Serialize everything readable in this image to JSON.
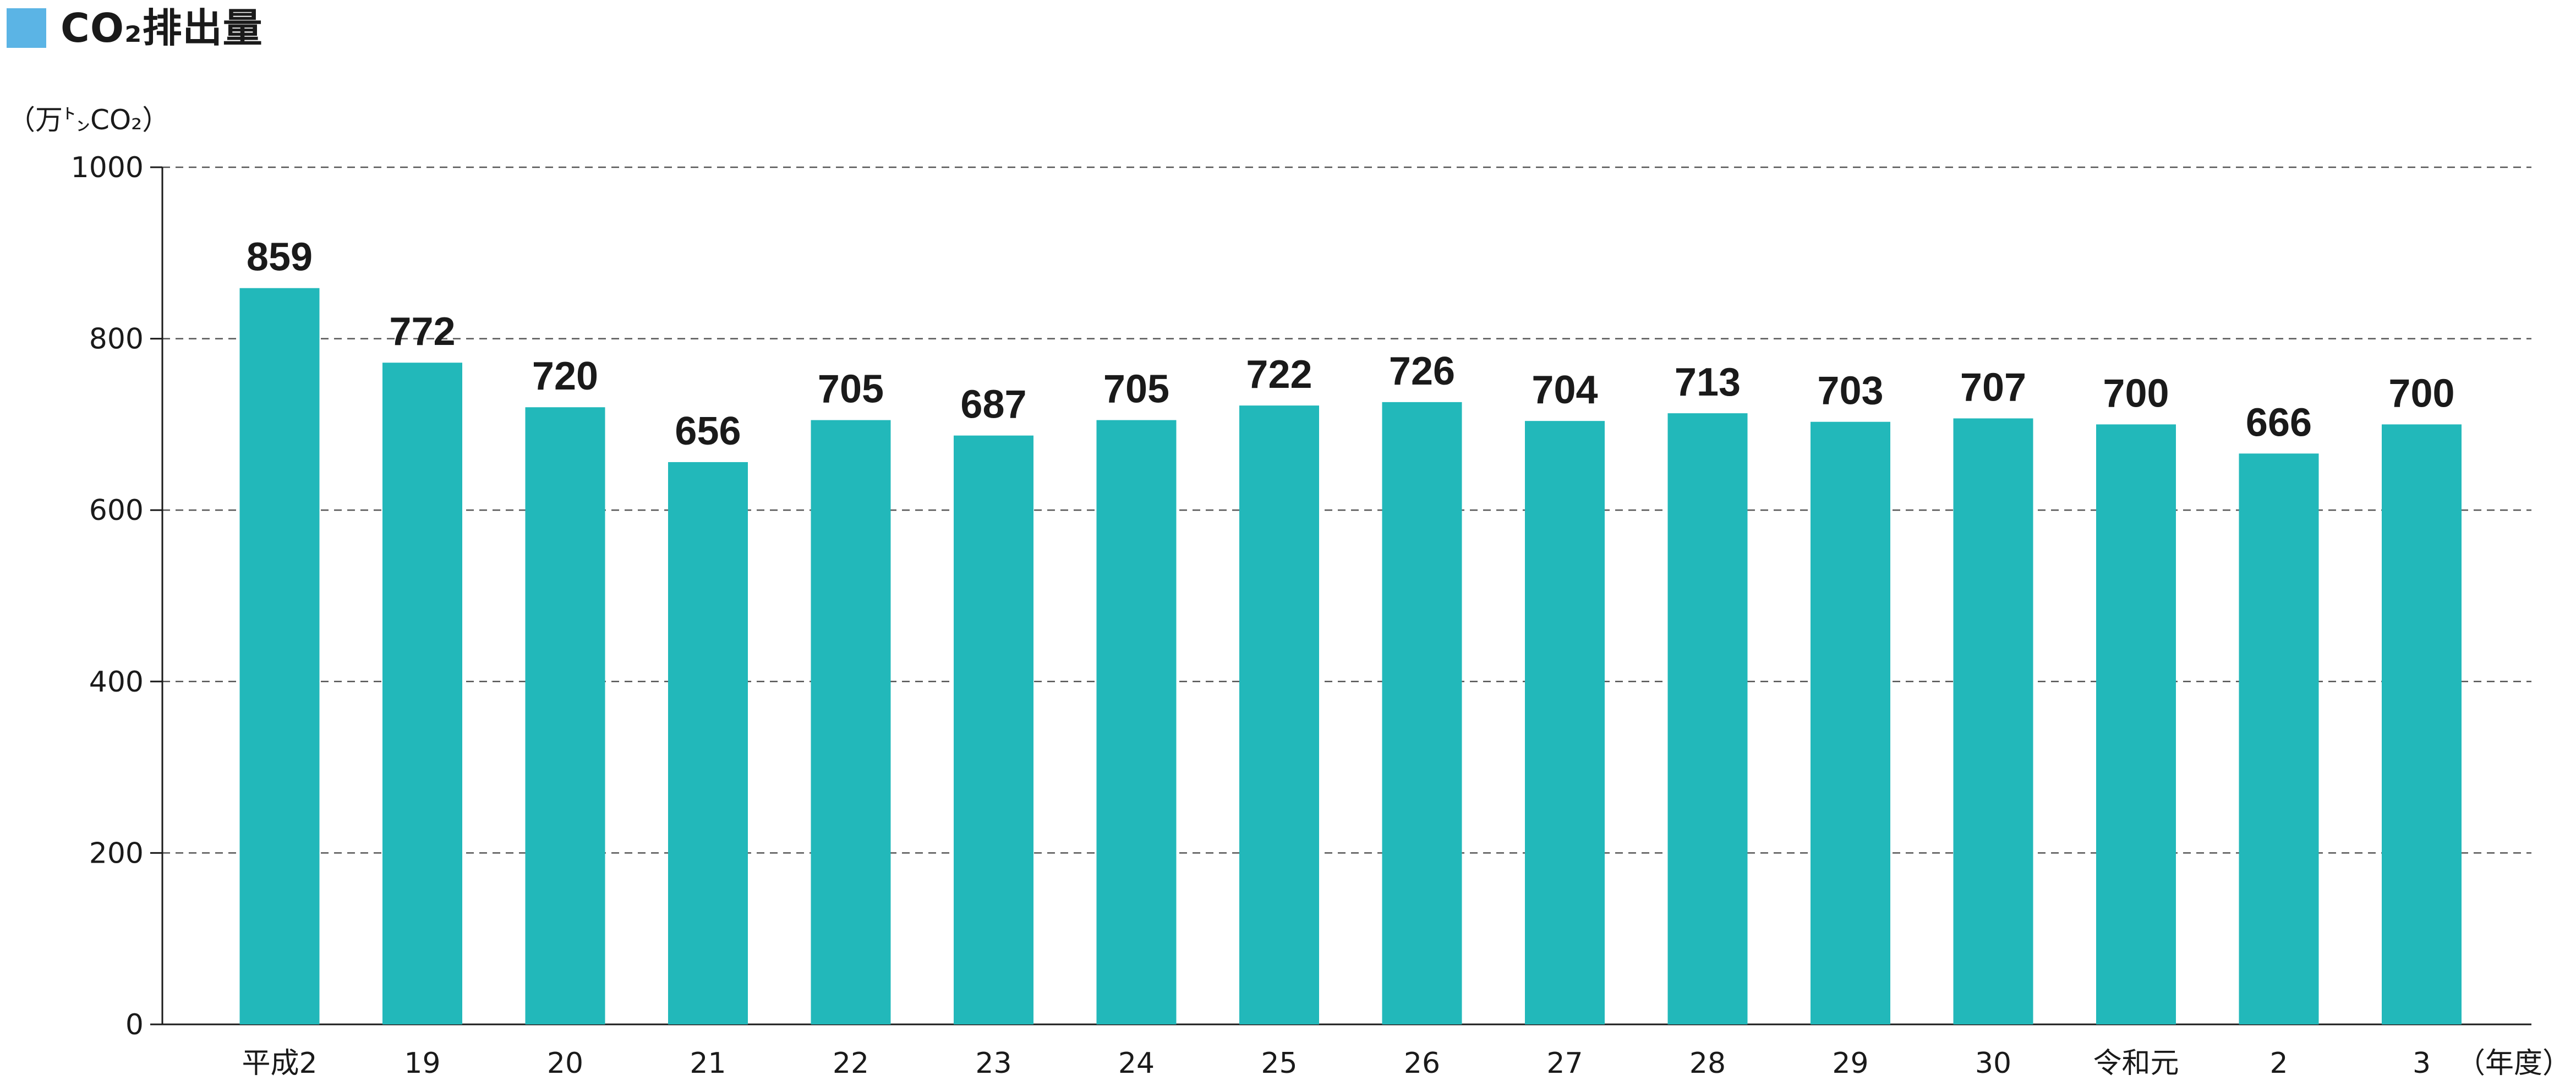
{
  "chart_data": {
    "type": "bar",
    "title": "CO₂排出量",
    "ylabel": "（万㌧CO₂）",
    "xlabel": "（年度）",
    "categories": [
      "平成2",
      "19",
      "20",
      "21",
      "22",
      "23",
      "24",
      "25",
      "26",
      "27",
      "28",
      "29",
      "30",
      "令和元",
      "2",
      "3"
    ],
    "values": [
      859,
      772,
      720,
      656,
      705,
      687,
      705,
      722,
      726,
      704,
      713,
      703,
      707,
      700,
      666,
      700
    ],
    "ylim": [
      0,
      1000
    ],
    "yticks": [
      0,
      200,
      400,
      600,
      800,
      1000
    ],
    "grid": true,
    "colors": {
      "bar": "#22B8BA",
      "title_swatch": "#5BB4E5",
      "text": "#1a1a1a"
    }
  }
}
